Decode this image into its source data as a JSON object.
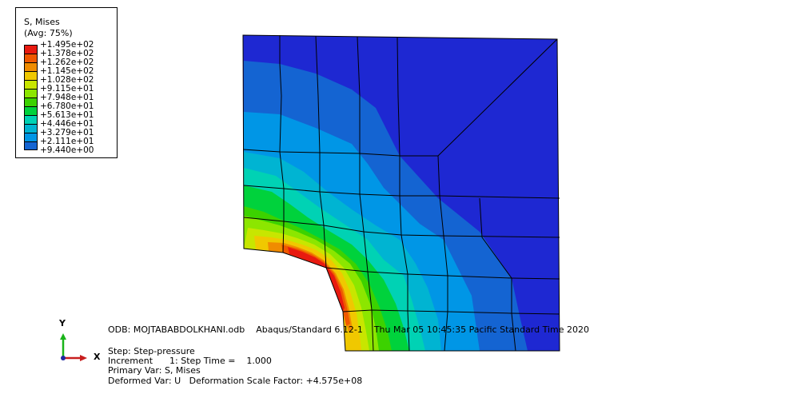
{
  "legend": {
    "title": "S, Mises",
    "subtitle": "(Avg: 75%)",
    "levels": [
      {
        "label": "+1.495e+02",
        "color": "#e81a10"
      },
      {
        "label": "+1.378e+02",
        "color": "#f05800"
      },
      {
        "label": "+1.262e+02",
        "color": "#f08c00"
      },
      {
        "label": "+1.145e+02",
        "color": "#f0c800"
      },
      {
        "label": "+1.028e+02",
        "color": "#c8e600"
      },
      {
        "label": "+9.115e+01",
        "color": "#8ce600"
      },
      {
        "label": "+7.948e+01",
        "color": "#3cd200"
      },
      {
        "label": "+6.780e+01",
        "color": "#00d23c"
      },
      {
        "label": "+5.613e+01",
        "color": "#00d2b4"
      },
      {
        "label": "+4.446e+01",
        "color": "#00b4d2"
      },
      {
        "label": "+3.279e+01",
        "color": "#0096e6"
      },
      {
        "label": "+2.111e+01",
        "color": "#1464d2"
      },
      {
        "label": "+9.440e+00",
        "color": "#1e28d2"
      }
    ]
  },
  "info": {
    "odb_line": "ODB: MOJTABABDOLKHANI.odb    Abaqus/Standard 6.12-1    Thu Mar 05 10:45:35 Pacific Standard Time 2020",
    "step_line": "Step: Step-pressure",
    "increment_line": "Increment      1: Step Time =    1.000",
    "primary_var_line": "Primary Var: S, Mises",
    "deformed_var_line": "Deformed Var: U   Deformation Scale Factor: +4.575e+08"
  },
  "triad": {
    "y_label": "Y",
    "x_label": "X",
    "y_color": "#1ab41a",
    "x_color": "#c81e1e"
  }
}
